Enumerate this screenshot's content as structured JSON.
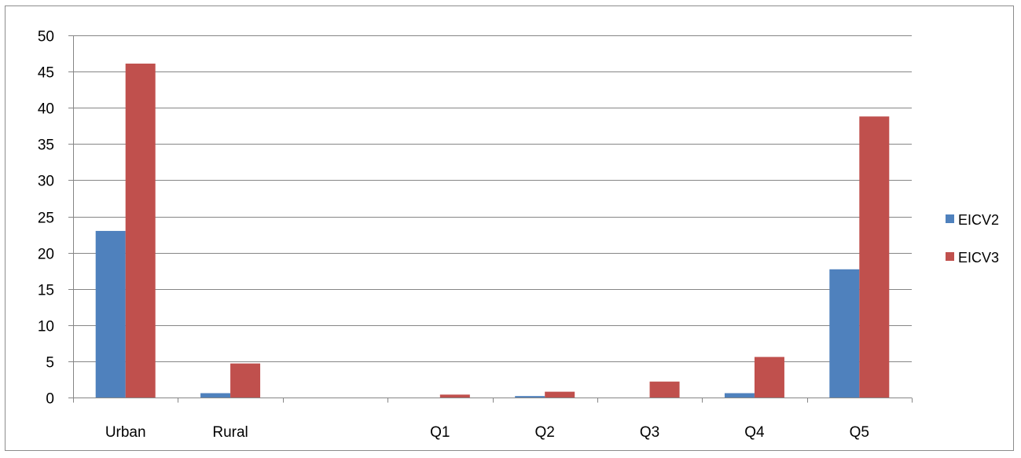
{
  "chart_data": {
    "type": "bar",
    "categories": [
      "Urban",
      "Rural",
      "",
      "Q1",
      "Q2",
      "Q3",
      "Q4",
      "Q5"
    ],
    "series": [
      {
        "name": "EICV2",
        "color": "#4F81BD",
        "values": [
          23,
          0.6,
          0,
          0,
          0.2,
          0,
          0.6,
          17.7
        ]
      },
      {
        "name": "EICV3",
        "color": "#C0504D",
        "values": [
          46.1,
          4.7,
          0,
          0.4,
          0.8,
          2.2,
          5.6,
          38.8
        ]
      }
    ],
    "title": "",
    "xlabel": "",
    "ylabel": "",
    "ylim": [
      0,
      50
    ],
    "yticks": [
      "0",
      "5",
      "10",
      "15",
      "20",
      "25",
      "30",
      "35",
      "40",
      "45",
      "50"
    ],
    "grid": true,
    "legend_position": "right"
  }
}
